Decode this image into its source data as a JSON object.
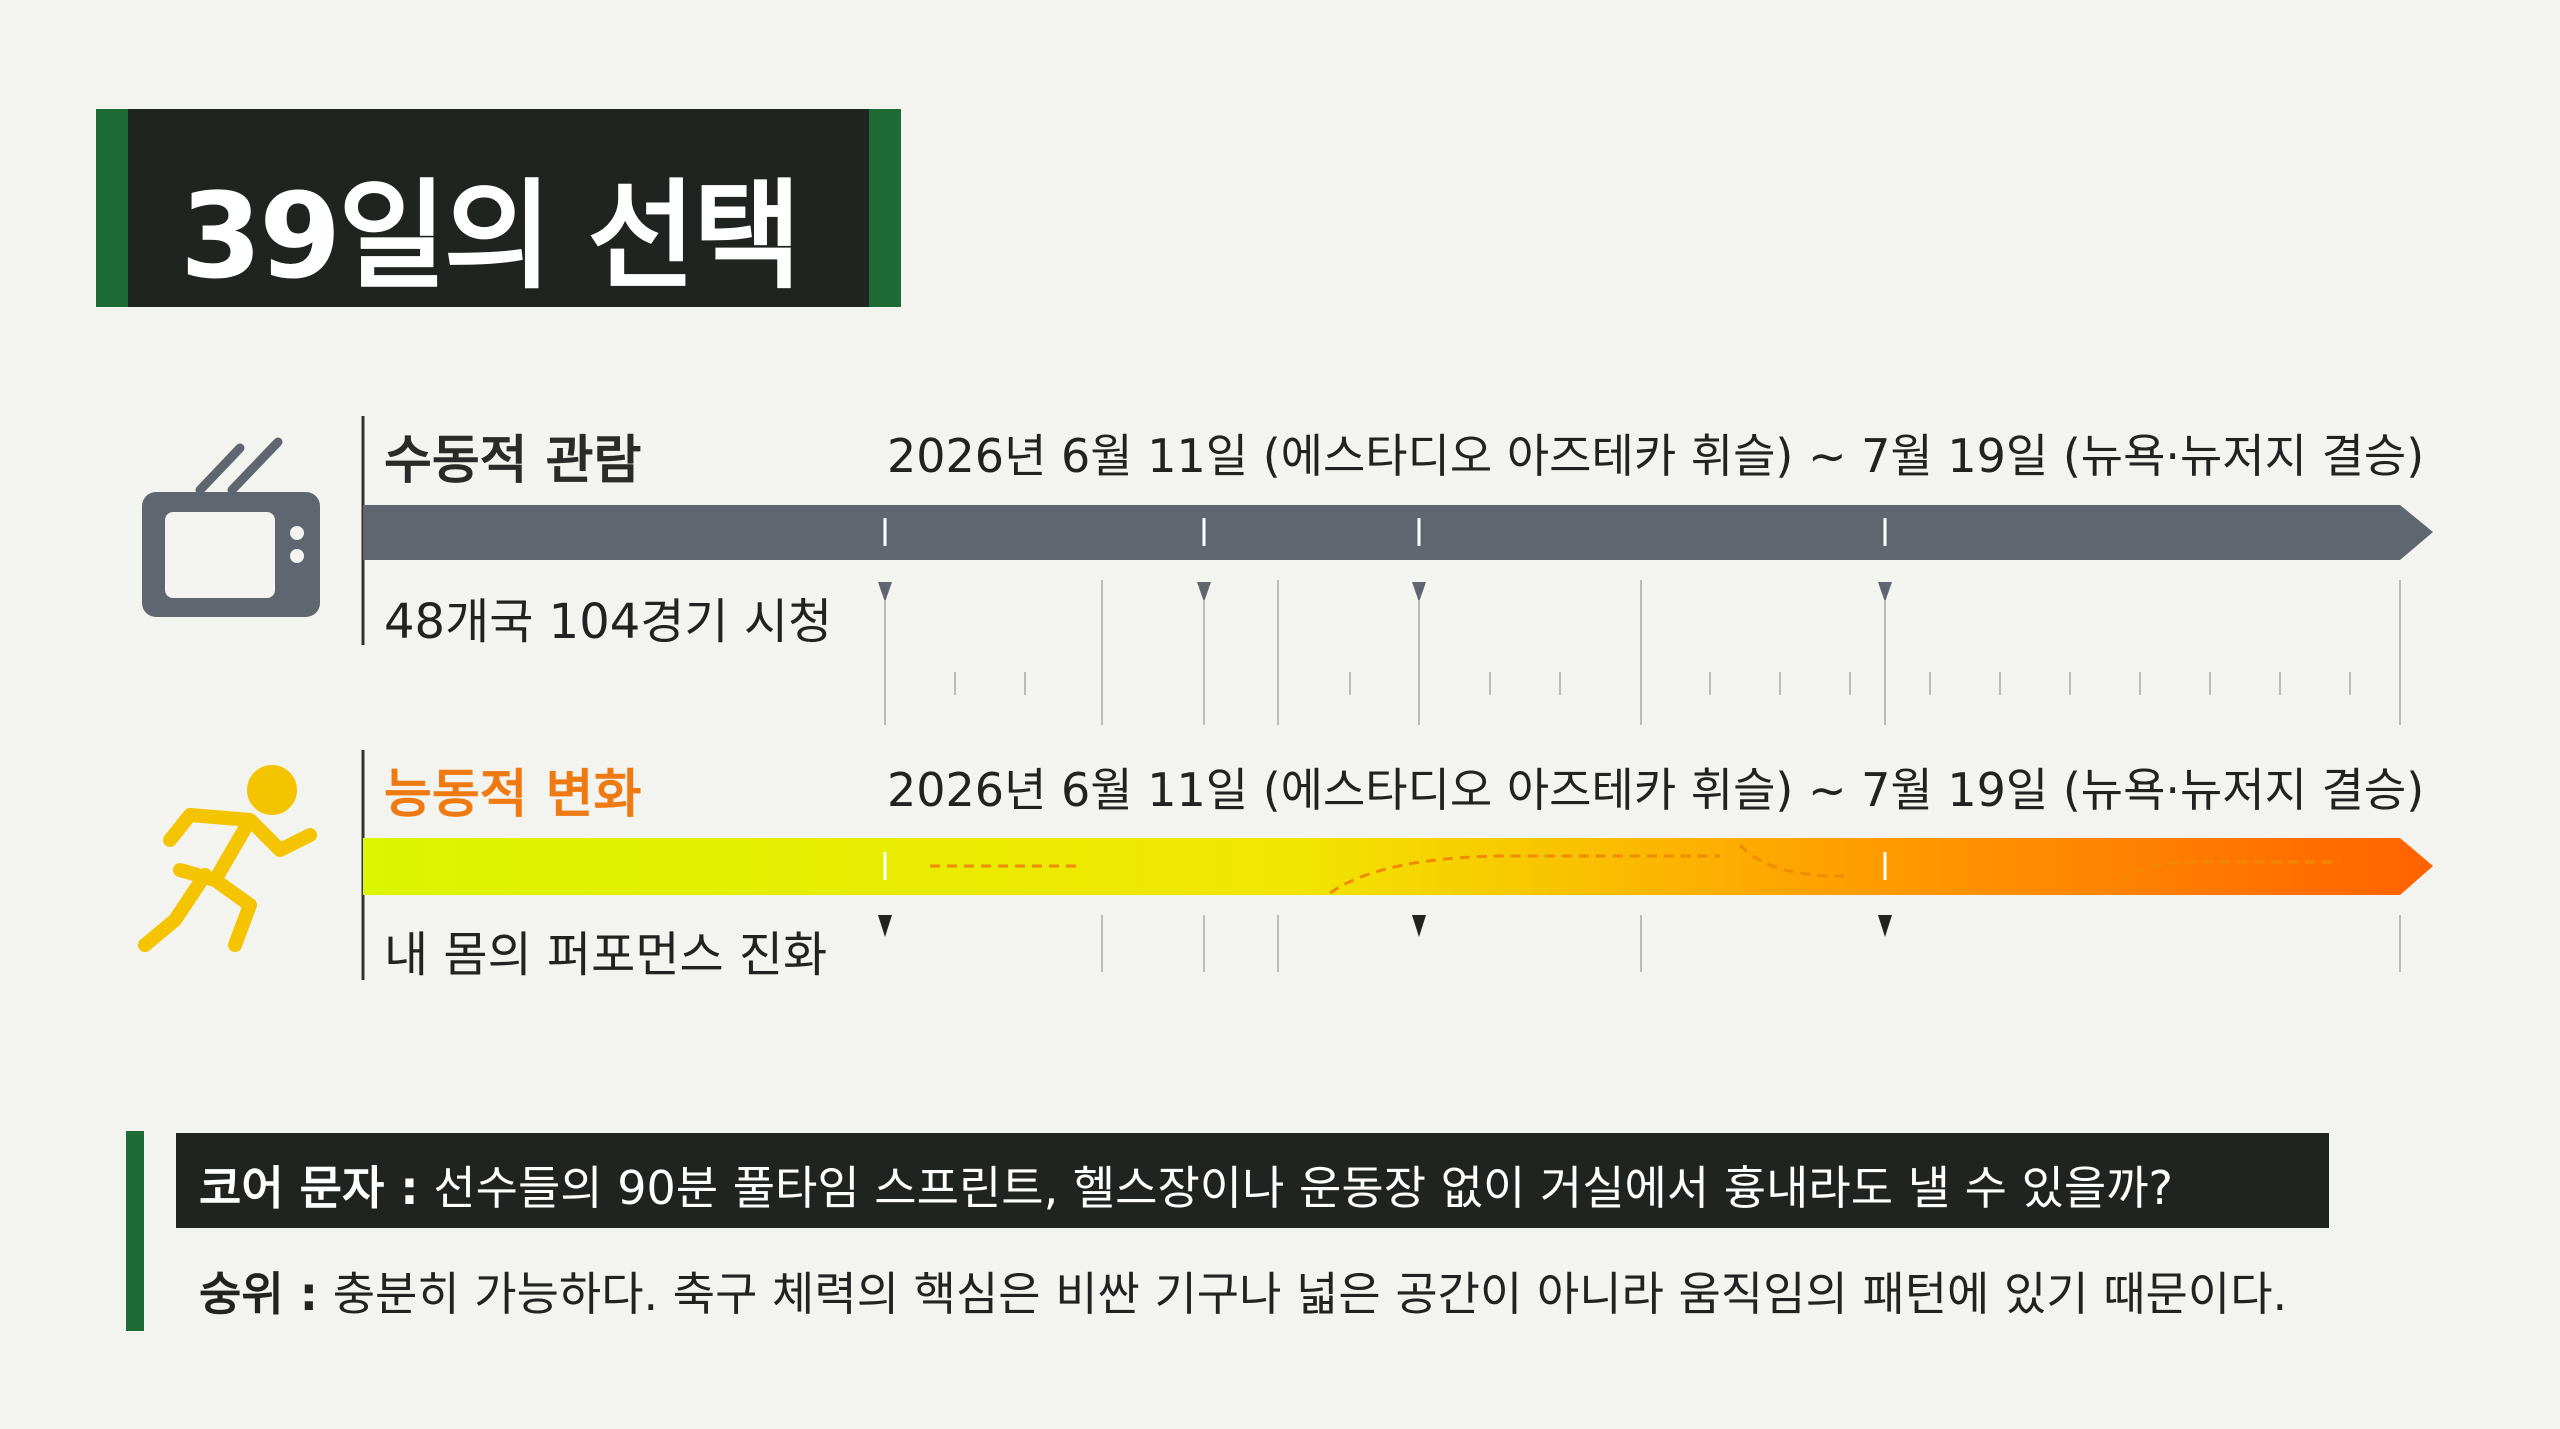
{
  "title": "39일의 선택",
  "rows": [
    {
      "label": "수동적 관람",
      "period": "2026년 6월 11일 (에스타디오 아즈테카 휘슬) ~ 7월 19일 (뉴욕·뉴저지 결승)",
      "caption": "48개국  104경기 시청"
    },
    {
      "label": "능동적 변화",
      "period": "2026년 6월 11일 (에스타디오 아즈테카 휘슬) ~ 7월 19일 (뉴욕·뉴저지 결승)",
      "caption": "내 몸의 퍼포먼스 진화"
    }
  ],
  "question": {
    "label": "코어 문자 :",
    "text": "선수들의 90분 풀타임 스프린트, 헬스장이나 운동장 없이 거실에서 흉내라도 낼 수 있을까?"
  },
  "answer": {
    "label": "숭위 :",
    "text": "충분히 가능하다. 축구 체력의 핵심은 비싼 기구나 넓은 공간이 아니라 움직임의 패턴에 있기 때문이다."
  }
}
